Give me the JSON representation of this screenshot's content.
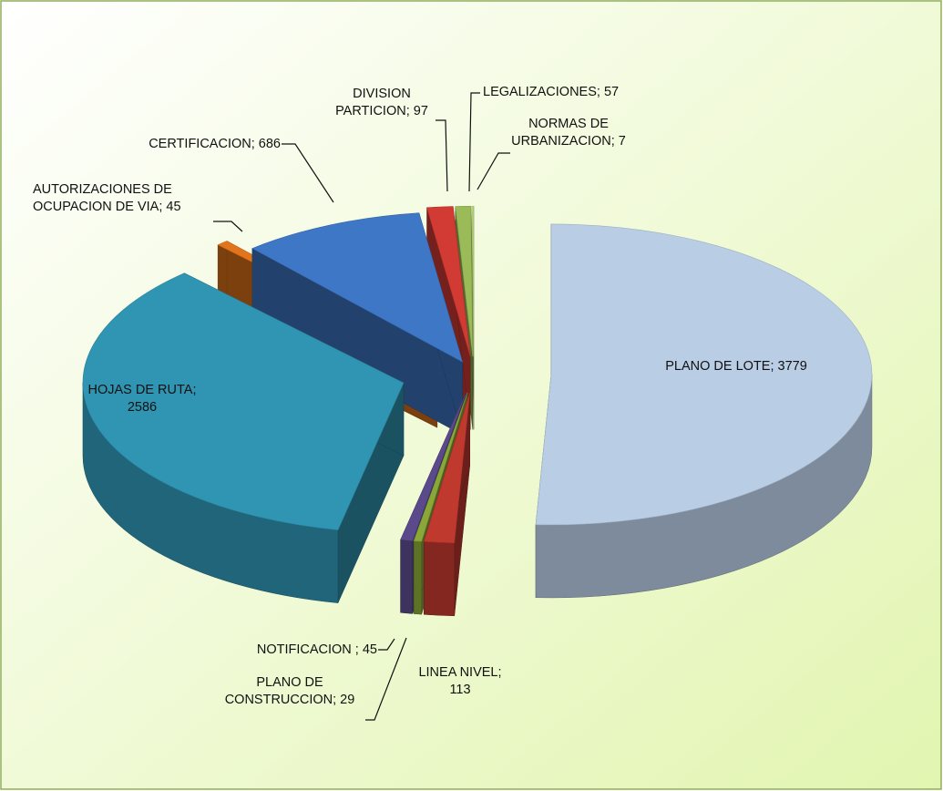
{
  "chart_data": {
    "type": "pie3d",
    "categories": [
      "PLANO DE LOTE",
      "LINEA NIVEL",
      "PLANO DE CONSTRUCCION",
      "NOTIFICACION ",
      "HOJAS DE RUTA",
      "AUTORIZACIONES DE OCUPACION DE VIA",
      "CERTIFICACION",
      "DIVISION PARTICION",
      "LEGALIZACIONES",
      "NORMAS DE URBANIZACION"
    ],
    "values": [
      3779,
      113,
      29,
      45,
      2586,
      45,
      686,
      97,
      57,
      7
    ],
    "colors": [
      "#b9cde5",
      "#c0392f",
      "#8aa83a",
      "#5b4a8b",
      "#2f95b3",
      "#e2741c",
      "#3d77c6",
      "#d23a34",
      "#9bbb59",
      "#b6d77a"
    ],
    "label_separator": "; "
  }
}
